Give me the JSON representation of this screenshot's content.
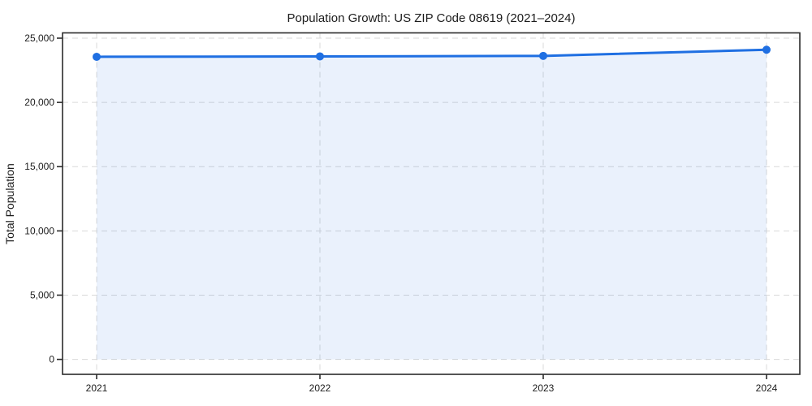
{
  "chart_data": {
    "type": "area",
    "title": "Population Growth: US ZIP Code 08619 (2021–2024)",
    "ylabel": "Total Population",
    "categories": [
      "2021",
      "2022",
      "2023",
      "2024"
    ],
    "series": [
      {
        "name": "Total Population",
        "values": [
          23550,
          23580,
          23620,
          24100
        ]
      }
    ],
    "ylim": [
      0,
      25000
    ],
    "yticks": [
      0,
      5000,
      10000,
      15000,
      20000,
      25000
    ],
    "grid": true,
    "grid_style": "dashed",
    "legend": false,
    "colors": {
      "line": "#1f6fe2",
      "fill": "#e9f0fc",
      "fill_opacity": 0.095,
      "grid": "#d9d9d9",
      "spine": "#2b2b2b",
      "text": "#1c1c1c"
    }
  }
}
